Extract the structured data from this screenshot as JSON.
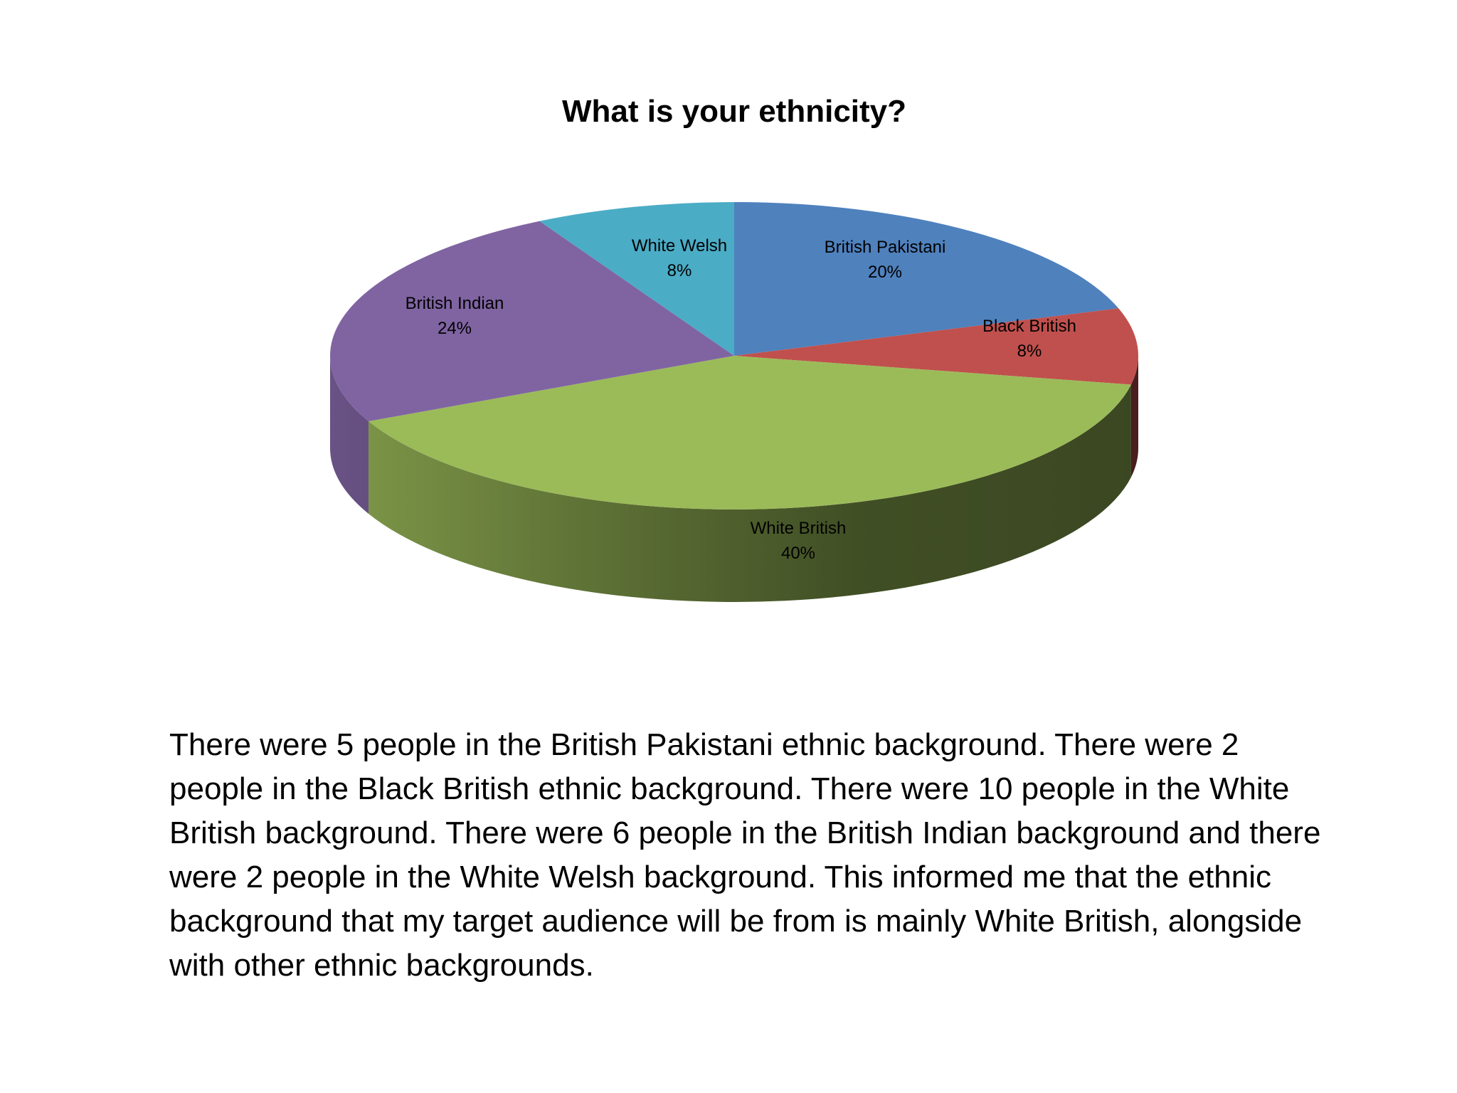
{
  "chart_data": {
    "type": "pie",
    "title": "What is your ethnicity?",
    "slices": [
      {
        "label": "British Pakistani",
        "percent_label": "20%",
        "value": 20,
        "color": "#4f81bd"
      },
      {
        "label": "Black British",
        "percent_label": "8%",
        "value": 8,
        "color": "#c0504d"
      },
      {
        "label": "White British",
        "percent_label": "40%",
        "value": 40,
        "color": "#9bbb59"
      },
      {
        "label": "British Indian",
        "percent_label": "24%",
        "value": 24,
        "color": "#8064a2"
      },
      {
        "label": "White Welsh",
        "percent_label": "8%",
        "value": 8,
        "color": "#4bacc6"
      }
    ],
    "style": "3d",
    "legend": "none",
    "data_labels": "inside"
  },
  "body": {
    "paragraph": "There were 5 people in the British Pakistani ethnic background. There were 2 people in the Black British ethnic background. There were 10 people in the White British background. There were 6 people in the British Indian background and there were 2 people in the White Welsh background. This informed me that the ethnic background that my target audience will be from is mainly White British, alongside with other ethnic backgrounds."
  }
}
